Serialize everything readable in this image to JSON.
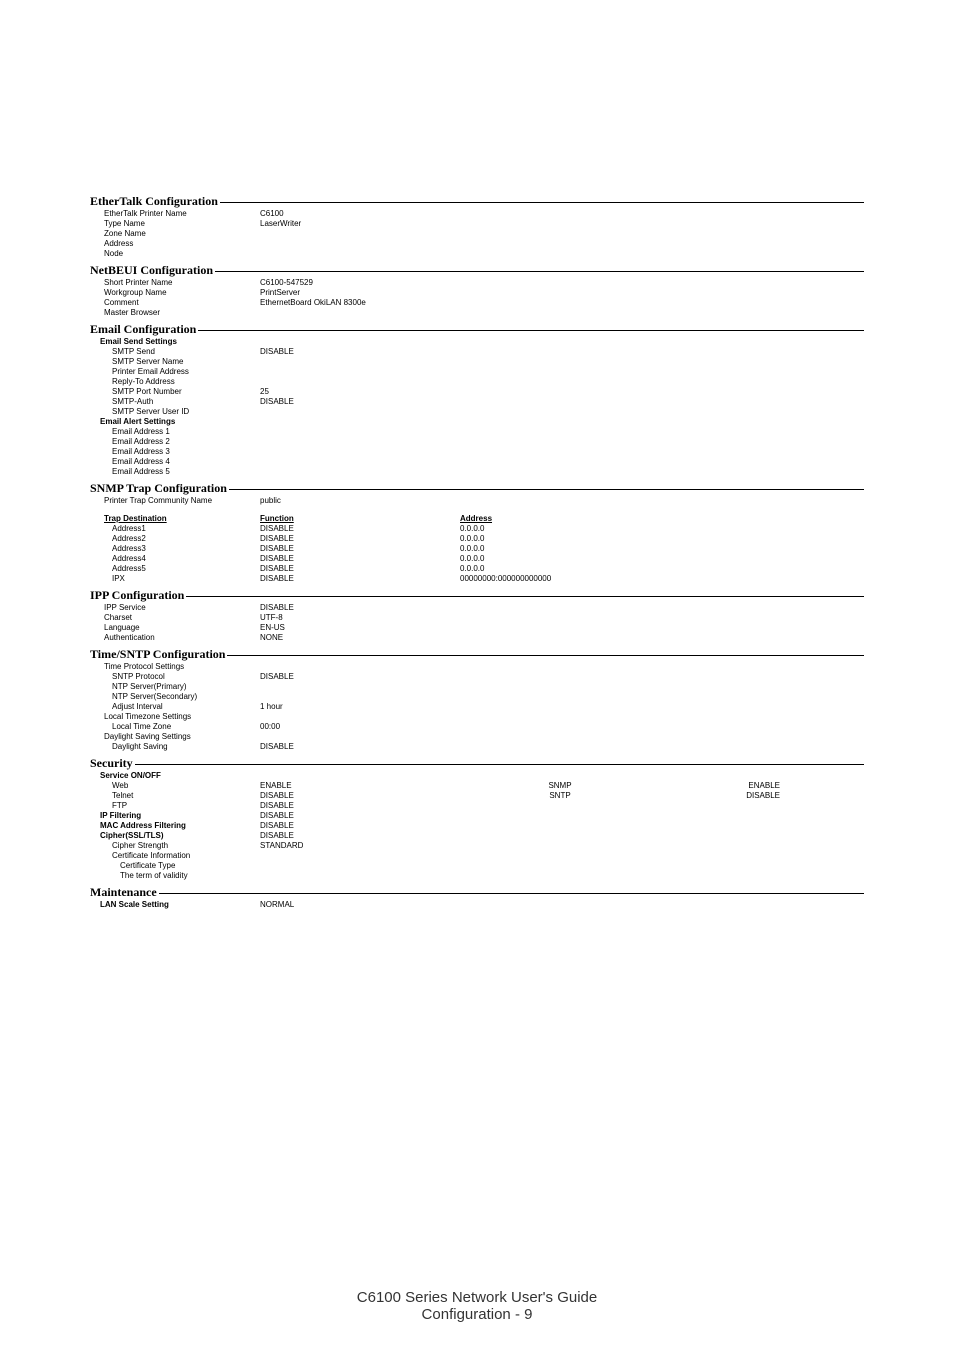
{
  "ethertalk": {
    "title": "EtherTalk Configuration",
    "printer_name_label": "EtherTalk Printer Name",
    "printer_name_value": "C6100",
    "type_name_label": "Type Name",
    "type_name_value": "LaserWriter",
    "zone_name_label": "Zone Name",
    "address_label": "Address",
    "node_label": "Node"
  },
  "netbeui": {
    "title": "NetBEUI Configuration",
    "short_printer_label": "Short Printer Name",
    "short_printer_value": "C6100-547529",
    "workgroup_label": "Workgroup Name",
    "workgroup_value": "PrintServer",
    "comment_label": "Comment",
    "comment_value": "EthernetBoard OkiLAN 8300e",
    "master_browser_label": "Master Browser"
  },
  "email": {
    "title": "Email Configuration",
    "send_settings_label": "Email Send Settings",
    "smtp_send_label": "SMTP Send",
    "smtp_send_value": "DISABLE",
    "smtp_server_label": "SMTP Server Name",
    "printer_email_label": "Printer Email Address",
    "reply_to_label": "Reply-To Address",
    "smtp_port_label": "SMTP Port Number",
    "smtp_port_value": "25",
    "smtp_auth_label": "SMTP-Auth",
    "smtp_auth_value": "DISABLE",
    "smtp_user_label": "SMTP Server User ID",
    "alert_settings_label": "Email Alert Settings",
    "addr1_label": "Email Address 1",
    "addr2_label": "Email Address 2",
    "addr3_label": "Email Address 3",
    "addr4_label": "Email Address 4",
    "addr5_label": "Email Address 5"
  },
  "snmp": {
    "title": "SNMP Trap Configuration",
    "community_label": "Printer Trap Community Name",
    "community_value": "public",
    "dest_header": "Trap Destination",
    "func_header": "Function",
    "addr_header": "Address",
    "rows": [
      {
        "dest": "Address1",
        "func": "DISABLE",
        "addr": "0.0.0.0"
      },
      {
        "dest": "Address2",
        "func": "DISABLE",
        "addr": "0.0.0.0"
      },
      {
        "dest": "Address3",
        "func": "DISABLE",
        "addr": "0.0.0.0"
      },
      {
        "dest": "Address4",
        "func": "DISABLE",
        "addr": "0.0.0.0"
      },
      {
        "dest": "Address5",
        "func": "DISABLE",
        "addr": "0.0.0.0"
      },
      {
        "dest": "IPX",
        "func": "DISABLE",
        "addr": "00000000:000000000000"
      }
    ]
  },
  "ipp": {
    "title": "IPP Configuration",
    "service_label": "IPP Service",
    "service_value": "DISABLE",
    "charset_label": "Charset",
    "charset_value": "UTF-8",
    "language_label": "Language",
    "language_value": "EN-US",
    "auth_label": "Authentication",
    "auth_value": "NONE"
  },
  "sntp": {
    "title": "Time/SNTP Configuration",
    "time_proto_label": "Time Protocol Settings",
    "sntp_proto_label": "SNTP Protocol",
    "sntp_proto_value": "DISABLE",
    "ntp_primary_label": "NTP Server(Primary)",
    "ntp_secondary_label": "NTP Server(Secondary)",
    "adjust_label": "Adjust Interval",
    "adjust_value": "1 hour",
    "tz_settings_label": "Local Timezone Settings",
    "tz_label": "Local Time Zone",
    "tz_value": "00:00",
    "ds_settings_label": "Daylight Saving Settings",
    "ds_label": "Daylight Saving",
    "ds_value": "DISABLE"
  },
  "security": {
    "title": "Security",
    "onoff_label": "Service ON/OFF",
    "web_label": "Web",
    "web_value": "ENABLE",
    "telnet_label": "Telnet",
    "telnet_value": "DISABLE",
    "ftp_label": "FTP",
    "ftp_value": "DISABLE",
    "ipfilter_label": "IP Filtering",
    "ipfilter_value": "DISABLE",
    "mac_label": "MAC Address Filtering",
    "mac_value": "DISABLE",
    "cipher_label": "Cipher(SSL/TLS)",
    "cipher_value": "DISABLE",
    "strength_label": "Cipher Strength",
    "strength_value": "STANDARD",
    "cert_info_label": "Certificate Information",
    "cert_type_label": "Certificate Type",
    "term_label": "The term of validity",
    "snmp_label": "SNMP",
    "snmp_value": "ENABLE",
    "sntp_label": "SNTP",
    "sntp_value": "DISABLE"
  },
  "maintenance": {
    "title": "Maintenance",
    "lan_label": "LAN Scale Setting",
    "lan_value": "NORMAL"
  },
  "footer": {
    "line1": "C6100 Series Network User's Guide",
    "line2_prefix": "Configuration    -   ",
    "page": "9"
  }
}
